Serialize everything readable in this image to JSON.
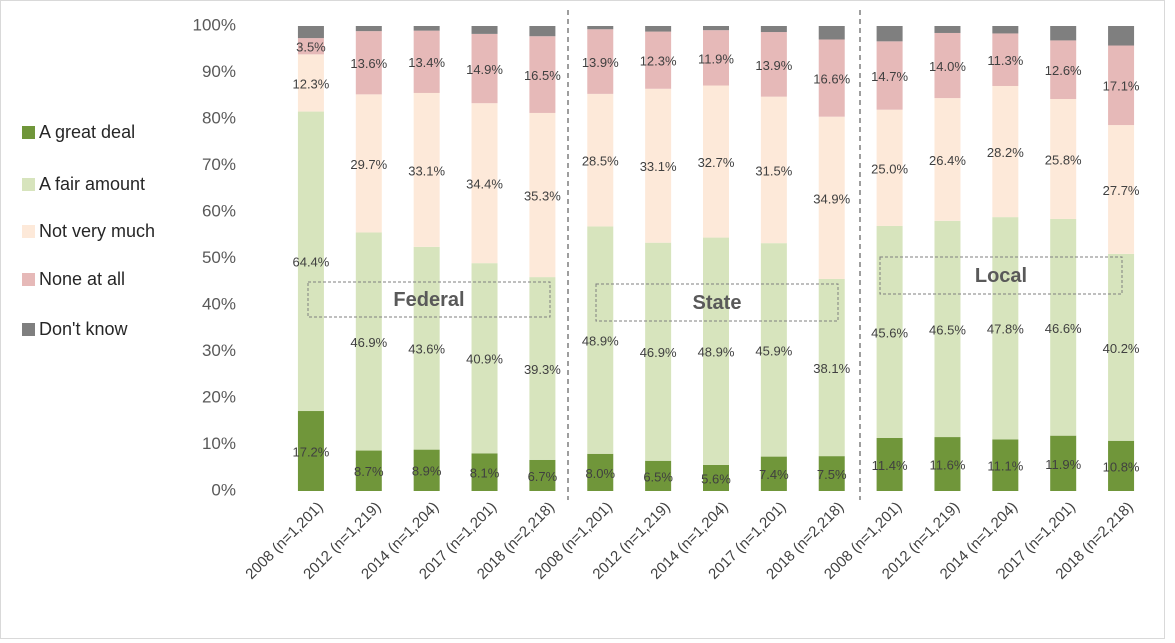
{
  "chart_data": {
    "type": "stacked_bar",
    "categories": [
      "2008 (n=1,201)",
      "2012 (n=1,219)",
      "2014 (n=1,204)",
      "2017 (n=1,201)",
      "2018 (n=2,218)",
      "2008 (n=1,201)",
      "2012 (n=1,219)",
      "2014 (n=1,204)",
      "2017 (n=1,201)",
      "2018 (n=2,218)",
      "2008 (n=1,201)",
      "2012 (n=1,219)",
      "2014 (n=1,204)",
      "2017 (n=1,201)",
      "2018 (n=2,218)"
    ],
    "series": [
      {
        "name": "A great deal",
        "color": "#70963a",
        "values": [
          17.2,
          8.7,
          8.9,
          8.1,
          6.7,
          8.0,
          6.5,
          5.6,
          7.4,
          7.5,
          11.4,
          11.6,
          11.1,
          11.9,
          10.8
        ],
        "value_labels": [
          "17.2%",
          "8.7%",
          "8.9%",
          "8.1%",
          "6.7%",
          "8.0%",
          "6.5%",
          "5.6%",
          "7.4%",
          "7.5%",
          "11.4%",
          "11.6%",
          "11.1%",
          "11.9%",
          "10.8%"
        ]
      },
      {
        "name": "A fair amount",
        "color": "#d7e4bd",
        "values": [
          64.4,
          46.9,
          43.6,
          40.9,
          39.3,
          48.9,
          46.9,
          48.9,
          45.9,
          38.1,
          45.6,
          46.5,
          47.8,
          46.6,
          40.2
        ],
        "value_labels": [
          "64.4%",
          "46.9%",
          "43.6%",
          "40.9%",
          "39.3%",
          "48.9%",
          "46.9%",
          "48.9%",
          "45.9%",
          "38.1%",
          "45.6%",
          "46.5%",
          "47.8%",
          "46.6%",
          "40.2%"
        ]
      },
      {
        "name": "Not very much",
        "color": "#fde9d9",
        "values": [
          12.3,
          29.7,
          33.1,
          34.4,
          35.3,
          28.5,
          33.1,
          32.7,
          31.5,
          34.9,
          25.0,
          26.4,
          28.2,
          25.8,
          27.7
        ],
        "value_labels": [
          "12.3%",
          "29.7%",
          "33.1%",
          "34.4%",
          "35.3%",
          "28.5%",
          "33.1%",
          "32.7%",
          "31.5%",
          "34.9%",
          "25.0%",
          "26.4%",
          "28.2%",
          "25.8%",
          "27.7%"
        ]
      },
      {
        "name": "None at all",
        "color": "#e6b9b8",
        "values": [
          3.5,
          13.6,
          13.4,
          14.9,
          16.5,
          13.9,
          12.3,
          11.9,
          13.9,
          16.6,
          14.7,
          14.0,
          11.3,
          12.6,
          17.1
        ],
        "value_labels": [
          "3.5%",
          "13.6%",
          "13.4%",
          "14.9%",
          "16.5%",
          "13.9%",
          "12.3%",
          "11.9%",
          "13.9%",
          "16.6%",
          "14.7%",
          "14.0%",
          "11.3%",
          "12.6%",
          "17.1%"
        ]
      },
      {
        "name": "Don't know",
        "color": "#7f7f7f",
        "values": [
          2.6,
          1.1,
          1.0,
          1.7,
          2.2,
          0.7,
          1.2,
          0.9,
          1.3,
          2.9,
          3.3,
          1.5,
          1.6,
          3.1,
          4.2
        ]
      }
    ],
    "annotations": [
      "Federal",
      "State",
      "Local"
    ],
    "ylim": [
      0,
      100
    ],
    "yticks": [
      {
        "value": 0,
        "label": "0%"
      },
      {
        "value": 10,
        "label": "10%"
      },
      {
        "value": 20,
        "label": "20%"
      },
      {
        "value": 30,
        "label": "30%"
      },
      {
        "value": 40,
        "label": "40%"
      },
      {
        "value": 50,
        "label": "50%"
      },
      {
        "value": 60,
        "label": "60%"
      },
      {
        "value": 70,
        "label": "70%"
      },
      {
        "value": 80,
        "label": "80%"
      },
      {
        "value": 90,
        "label": "90%"
      },
      {
        "value": 100,
        "label": "100%"
      }
    ],
    "grid": false,
    "legend": "left"
  }
}
